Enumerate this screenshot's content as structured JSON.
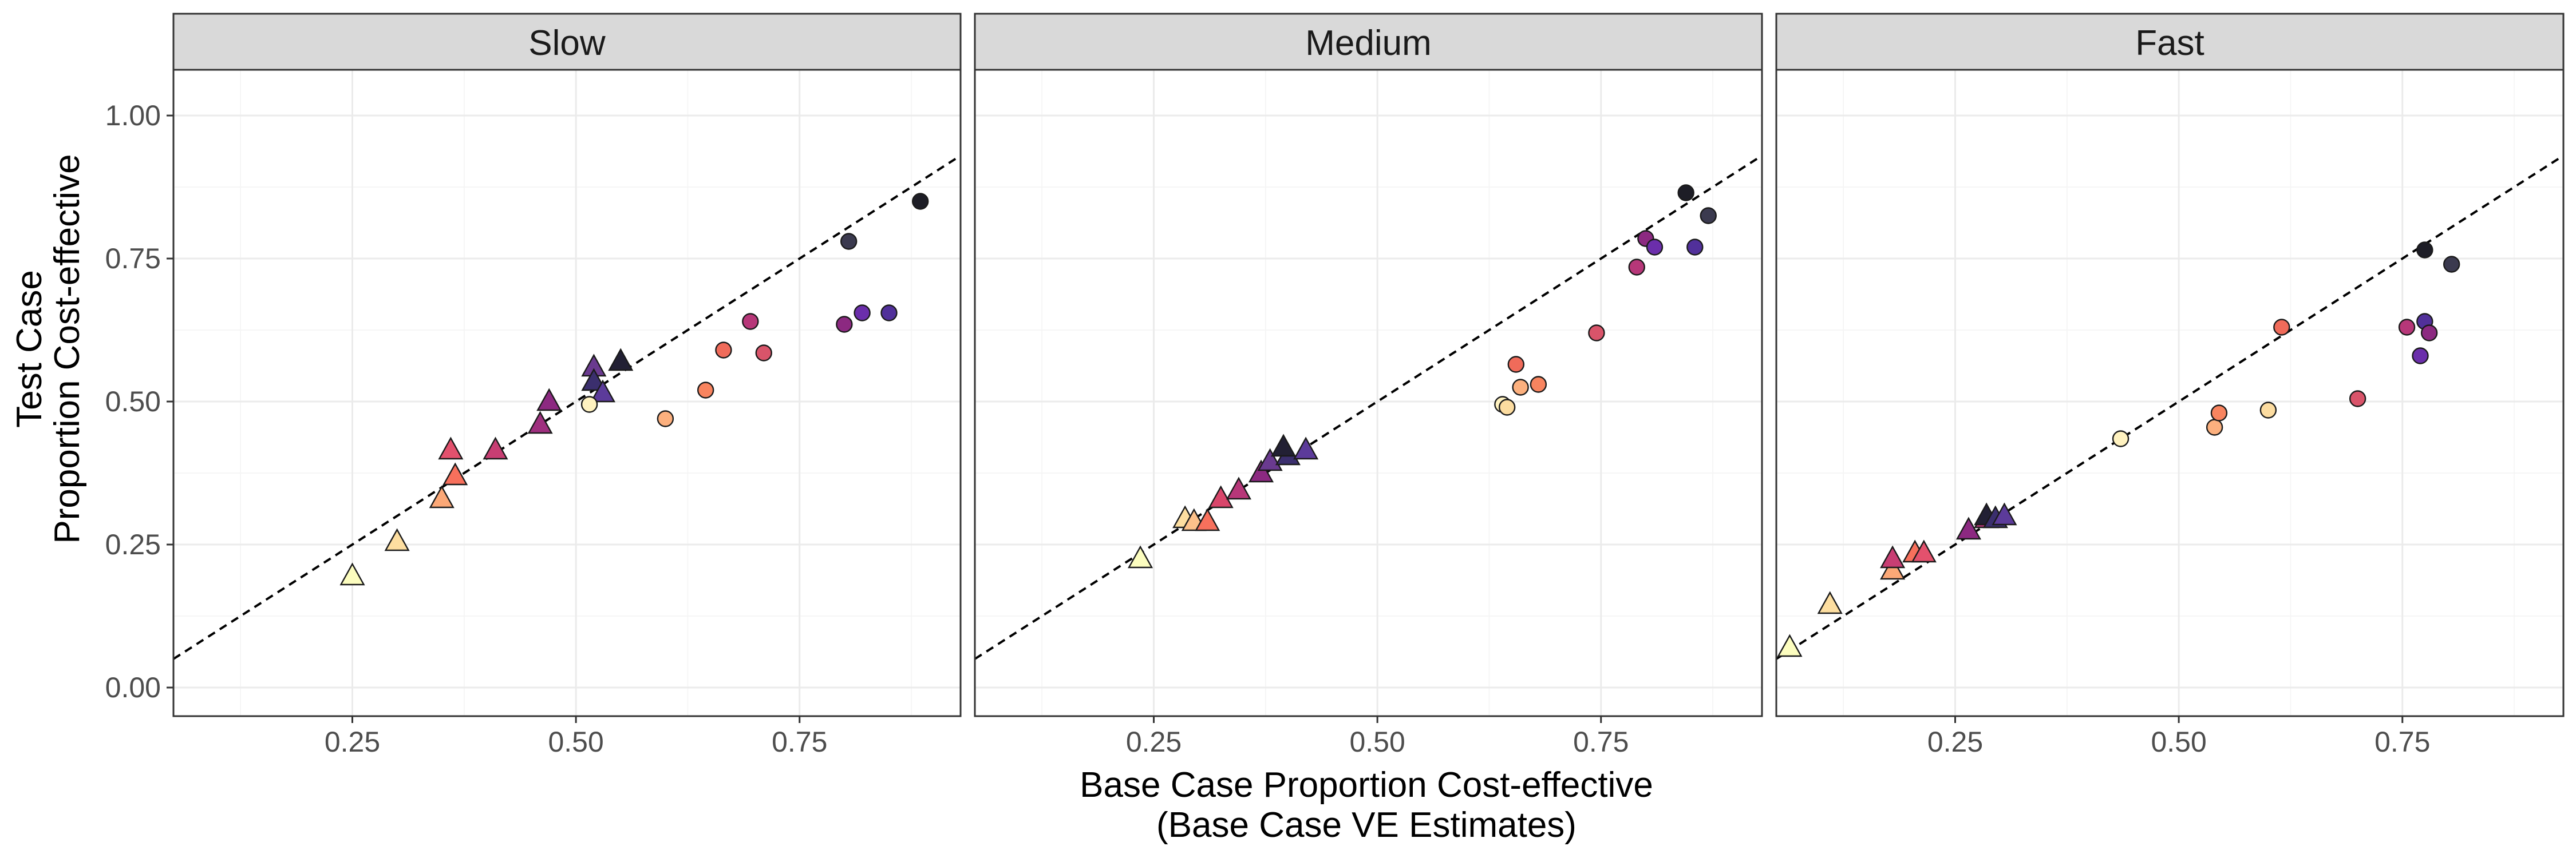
{
  "chart_data": {
    "type": "scatter",
    "x_title_lines": [
      "Base Case Proportion Cost-effective",
      "(Base Case VE Estimates)"
    ],
    "y_title_lines": [
      "Test Case",
      "Proportion Cost-effective"
    ],
    "xlim": [
      0.05,
      0.93
    ],
    "ylim": [
      -0.05,
      1.08
    ],
    "x_ticks": [
      0.25,
      0.5,
      0.75
    ],
    "x_tick_labels": [
      "0.25",
      "0.50",
      "0.75"
    ],
    "y_ticks": [
      0,
      0.25,
      0.5,
      0.75,
      1.0
    ],
    "y_tick_labels": [
      "0.00",
      "0.25",
      "0.50",
      "0.75",
      "1.00"
    ],
    "grid": true,
    "reference_line": {
      "style": "dashed",
      "intercept": 0.0,
      "slope": 1.0
    },
    "panels": [
      {
        "label": "Slow",
        "points": [
          {
            "x": 0.25,
            "y": 0.195,
            "shape": "triangle",
            "color": "#fcfdbf"
          },
          {
            "x": 0.3,
            "y": 0.255,
            "shape": "triangle",
            "color": "#fddea0"
          },
          {
            "x": 0.35,
            "y": 0.33,
            "shape": "triangle",
            "color": "#fba877"
          },
          {
            "x": 0.365,
            "y": 0.37,
            "shape": "triangle",
            "color": "#f7705c"
          },
          {
            "x": 0.36,
            "y": 0.415,
            "shape": "triangle",
            "color": "#e3516d"
          },
          {
            "x": 0.41,
            "y": 0.415,
            "shape": "triangle",
            "color": "#c83e73"
          },
          {
            "x": 0.46,
            "y": 0.46,
            "shape": "triangle",
            "color": "#9f2f7f"
          },
          {
            "x": 0.47,
            "y": 0.5,
            "shape": "triangle",
            "color": "#8c2981"
          },
          {
            "x": 0.52,
            "y": 0.56,
            "shape": "triangle",
            "color": "#6a3a8f"
          },
          {
            "x": 0.52,
            "y": 0.535,
            "shape": "triangle",
            "color": "#3b2f6e"
          },
          {
            "x": 0.53,
            "y": 0.515,
            "shape": "triangle",
            "color": "#5c3b9a"
          },
          {
            "x": 0.55,
            "y": 0.57,
            "shape": "triangle",
            "color": "#222034"
          },
          {
            "x": 0.515,
            "y": 0.495,
            "shape": "circle",
            "color": "#fff2c0"
          },
          {
            "x": 0.6,
            "y": 0.47,
            "shape": "circle",
            "color": "#fcb07e"
          },
          {
            "x": 0.645,
            "y": 0.52,
            "shape": "circle",
            "color": "#f8845f"
          },
          {
            "x": 0.665,
            "y": 0.59,
            "shape": "circle",
            "color": "#f06b5a"
          },
          {
            "x": 0.71,
            "y": 0.585,
            "shape": "circle",
            "color": "#d9546a"
          },
          {
            "x": 0.695,
            "y": 0.64,
            "shape": "circle",
            "color": "#b73779"
          },
          {
            "x": 0.8,
            "y": 0.635,
            "shape": "circle",
            "color": "#8c2981"
          },
          {
            "x": 0.82,
            "y": 0.655,
            "shape": "circle",
            "color": "#6b2eab"
          },
          {
            "x": 0.85,
            "y": 0.655,
            "shape": "circle",
            "color": "#51309a"
          },
          {
            "x": 0.805,
            "y": 0.78,
            "shape": "circle",
            "color": "#3b3a4f"
          },
          {
            "x": 0.885,
            "y": 0.85,
            "shape": "circle",
            "color": "#1d1d26"
          }
        ]
      },
      {
        "label": "Medium",
        "points": [
          {
            "x": 0.235,
            "y": 0.225,
            "shape": "triangle",
            "color": "#fcfdbf"
          },
          {
            "x": 0.285,
            "y": 0.295,
            "shape": "triangle",
            "color": "#fddea0"
          },
          {
            "x": 0.295,
            "y": 0.29,
            "shape": "triangle",
            "color": "#fcc18a"
          },
          {
            "x": 0.31,
            "y": 0.29,
            "shape": "triangle",
            "color": "#f7705c"
          },
          {
            "x": 0.325,
            "y": 0.33,
            "shape": "triangle",
            "color": "#d9466b"
          },
          {
            "x": 0.345,
            "y": 0.345,
            "shape": "triangle",
            "color": "#b73779"
          },
          {
            "x": 0.37,
            "y": 0.375,
            "shape": "triangle",
            "color": "#8c2981"
          },
          {
            "x": 0.38,
            "y": 0.395,
            "shape": "triangle",
            "color": "#6a3a8f"
          },
          {
            "x": 0.4,
            "y": 0.405,
            "shape": "triangle",
            "color": "#3b2f6e"
          },
          {
            "x": 0.42,
            "y": 0.415,
            "shape": "triangle",
            "color": "#5c3b9a"
          },
          {
            "x": 0.395,
            "y": 0.42,
            "shape": "triangle",
            "color": "#222034"
          },
          {
            "x": 0.64,
            "y": 0.495,
            "shape": "circle",
            "color": "#fff2c0"
          },
          {
            "x": 0.645,
            "y": 0.49,
            "shape": "circle",
            "color": "#fcdca0"
          },
          {
            "x": 0.66,
            "y": 0.525,
            "shape": "circle",
            "color": "#fcb07e"
          },
          {
            "x": 0.68,
            "y": 0.53,
            "shape": "circle",
            "color": "#f8845f"
          },
          {
            "x": 0.655,
            "y": 0.565,
            "shape": "circle",
            "color": "#f06b5a"
          },
          {
            "x": 0.745,
            "y": 0.62,
            "shape": "circle",
            "color": "#d9546a"
          },
          {
            "x": 0.79,
            "y": 0.735,
            "shape": "circle",
            "color": "#b73779"
          },
          {
            "x": 0.8,
            "y": 0.785,
            "shape": "circle",
            "color": "#8c2981"
          },
          {
            "x": 0.81,
            "y": 0.77,
            "shape": "circle",
            "color": "#6b2eab"
          },
          {
            "x": 0.855,
            "y": 0.77,
            "shape": "circle",
            "color": "#51309a"
          },
          {
            "x": 0.845,
            "y": 0.865,
            "shape": "circle",
            "color": "#1d1d26"
          },
          {
            "x": 0.87,
            "y": 0.825,
            "shape": "circle",
            "color": "#3b3a4f"
          }
        ]
      },
      {
        "label": "Fast",
        "points": [
          {
            "x": 0.065,
            "y": 0.07,
            "shape": "triangle",
            "color": "#fcfdbf"
          },
          {
            "x": 0.11,
            "y": 0.145,
            "shape": "triangle",
            "color": "#fddea0"
          },
          {
            "x": 0.18,
            "y": 0.205,
            "shape": "triangle",
            "color": "#fba877"
          },
          {
            "x": 0.205,
            "y": 0.235,
            "shape": "triangle",
            "color": "#f7705c"
          },
          {
            "x": 0.215,
            "y": 0.235,
            "shape": "triangle",
            "color": "#e3516d"
          },
          {
            "x": 0.18,
            "y": 0.225,
            "shape": "triangle",
            "color": "#c83e73"
          },
          {
            "x": 0.265,
            "y": 0.275,
            "shape": "triangle",
            "color": "#8c2981"
          },
          {
            "x": 0.285,
            "y": 0.295,
            "shape": "triangle",
            "color": "#b73779"
          },
          {
            "x": 0.285,
            "y": 0.3,
            "shape": "triangle",
            "color": "#222034"
          },
          {
            "x": 0.295,
            "y": 0.295,
            "shape": "triangle",
            "color": "#3b2f6e"
          },
          {
            "x": 0.305,
            "y": 0.3,
            "shape": "triangle",
            "color": "#5c3b9a"
          },
          {
            "x": 0.435,
            "y": 0.435,
            "shape": "circle",
            "color": "#fff2c0"
          },
          {
            "x": 0.54,
            "y": 0.455,
            "shape": "circle",
            "color": "#fcb07e"
          },
          {
            "x": 0.545,
            "y": 0.48,
            "shape": "circle",
            "color": "#f8845f"
          },
          {
            "x": 0.6,
            "y": 0.485,
            "shape": "circle",
            "color": "#fcdca0"
          },
          {
            "x": 0.615,
            "y": 0.63,
            "shape": "circle",
            "color": "#f06b5a"
          },
          {
            "x": 0.7,
            "y": 0.505,
            "shape": "circle",
            "color": "#d9546a"
          },
          {
            "x": 0.755,
            "y": 0.63,
            "shape": "circle",
            "color": "#b73779"
          },
          {
            "x": 0.77,
            "y": 0.58,
            "shape": "circle",
            "color": "#6b2eab"
          },
          {
            "x": 0.775,
            "y": 0.64,
            "shape": "circle",
            "color": "#51309a"
          },
          {
            "x": 0.78,
            "y": 0.62,
            "shape": "circle",
            "color": "#8c2981"
          },
          {
            "x": 0.775,
            "y": 0.765,
            "shape": "circle",
            "color": "#1d1d26"
          },
          {
            "x": 0.805,
            "y": 0.74,
            "shape": "circle",
            "color": "#3b3a4f"
          }
        ]
      }
    ]
  }
}
